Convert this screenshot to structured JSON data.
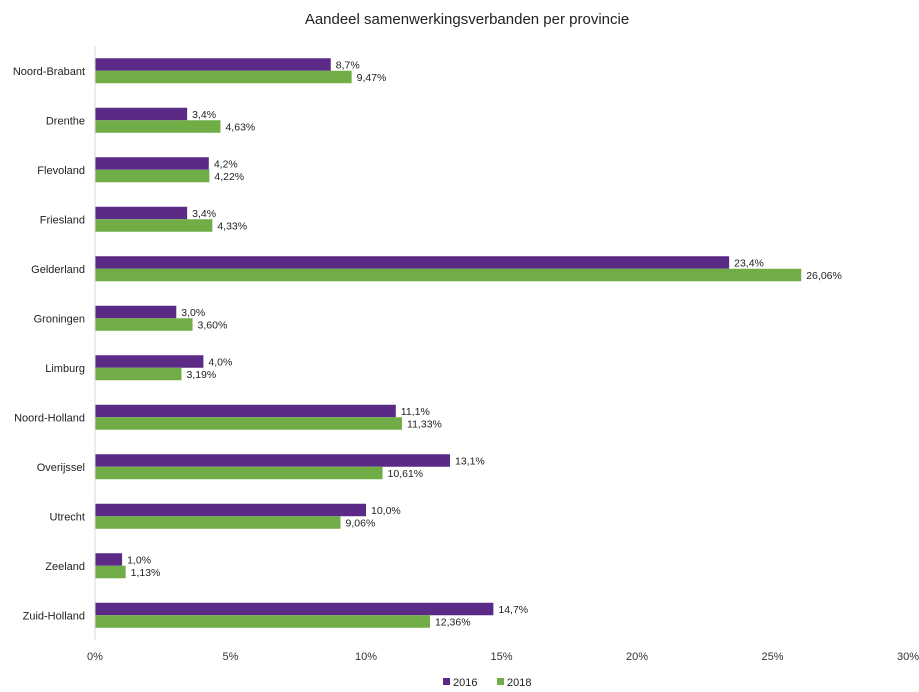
{
  "chart_data": {
    "type": "bar",
    "orientation": "horizontal",
    "title": "Aandeel samenwerkingsverbanden per provincie",
    "categories": [
      "Noord-Brabant",
      "Drenthe",
      "Flevoland",
      "Friesland",
      "Gelderland",
      "Groningen",
      "Limburg",
      "Noord-Holland",
      "Overijssel",
      "Utrecht",
      "Zeeland",
      "Zuid-Holland"
    ],
    "series": [
      {
        "name": "2016",
        "color": "#5b2a86",
        "values": [
          8.7,
          3.4,
          4.2,
          3.4,
          23.4,
          3.0,
          4.0,
          11.1,
          13.1,
          10.0,
          1.0,
          14.7
        ],
        "labels": [
          "8,7%",
          "3,4%",
          "4,2%",
          "3,4%",
          "23,4%",
          "3,0%",
          "4,0%",
          "11,1%",
          "13,1%",
          "10,0%",
          "1,0%",
          "14,7%"
        ]
      },
      {
        "name": "2018",
        "color": "#70ad47",
        "values": [
          9.47,
          4.63,
          4.22,
          4.33,
          26.06,
          3.6,
          3.19,
          11.33,
          10.61,
          9.06,
          1.13,
          12.36
        ],
        "labels": [
          "9,47%",
          "4,63%",
          "4,22%",
          "4,33%",
          "26,06%",
          "3,60%",
          "3,19%",
          "11,33%",
          "10,61%",
          "9,06%",
          "1,13%",
          "12,36%"
        ]
      }
    ],
    "xlim": [
      0,
      30
    ],
    "x_ticks": [
      0,
      5,
      10,
      15,
      20,
      25,
      30
    ],
    "x_tick_labels": [
      "0%",
      "5%",
      "10%",
      "15%",
      "20%",
      "25%",
      "30%"
    ],
    "xlabel": "",
    "ylabel": "",
    "grid": false,
    "legend_position": "bottom",
    "axis_color": "#d9d9d9"
  }
}
